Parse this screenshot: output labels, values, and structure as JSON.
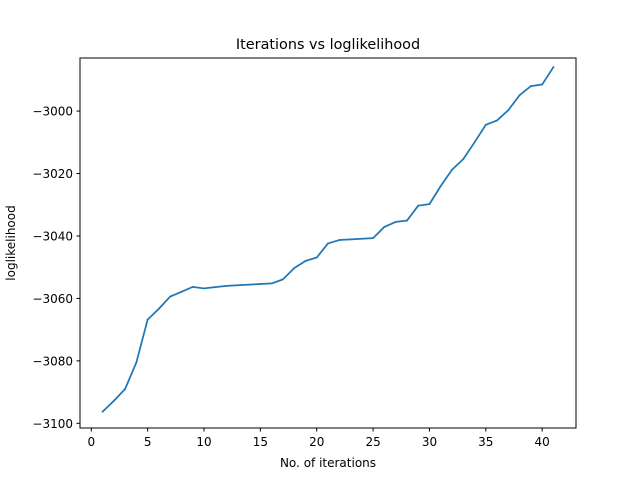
{
  "chart_data": {
    "type": "line",
    "title": "Iterations vs loglikelihood",
    "xlabel": "No. of iterations",
    "ylabel": "loglikelihood",
    "xlim": [
      -1,
      43
    ],
    "ylim": [
      -3101.5,
      -2983.0
    ],
    "xticks": [
      0,
      5,
      10,
      15,
      20,
      25,
      30,
      35,
      40
    ],
    "yticks": [
      -3100,
      -3080,
      -3060,
      -3040,
      -3020,
      -3000
    ],
    "xtick_labels": [
      "0",
      "5",
      "10",
      "15",
      "20",
      "25",
      "30",
      "35",
      "40"
    ],
    "ytick_labels": [
      "−3100",
      "−3080",
      "−3060",
      "−3040",
      "−3020",
      "−3000"
    ],
    "grid": false,
    "line_color": "#1f77b4",
    "series": [
      {
        "x": [
          1,
          2,
          3,
          4,
          5,
          6,
          7,
          8,
          9,
          10,
          11,
          12,
          13,
          14,
          15,
          16,
          17,
          18,
          19,
          20,
          21,
          22,
          23,
          24,
          25,
          26,
          27,
          28,
          29,
          30,
          31,
          32,
          33,
          34,
          35,
          36,
          37,
          38,
          39,
          40,
          41
        ],
        "values": [
          -3096.3,
          -3092.8,
          -3089.0,
          -3080.5,
          -3066.8,
          -3063.3,
          -3059.4,
          -3057.9,
          -3056.3,
          -3056.8,
          -3056.4,
          -3056.0,
          -3055.8,
          -3055.6,
          -3055.4,
          -3055.2,
          -3053.9,
          -3050.3,
          -3048.0,
          -3046.9,
          -3042.4,
          -3041.3,
          -3041.1,
          -3040.9,
          -3040.7,
          -3037.1,
          -3035.5,
          -3035.1,
          -3030.3,
          -3029.8,
          -3024.0,
          -3018.8,
          -3015.4,
          -3010.0,
          -3004.4,
          -3003.0,
          -2999.7,
          -2994.9,
          -2992.0,
          -2991.5,
          -2985.9
        ]
      }
    ]
  }
}
